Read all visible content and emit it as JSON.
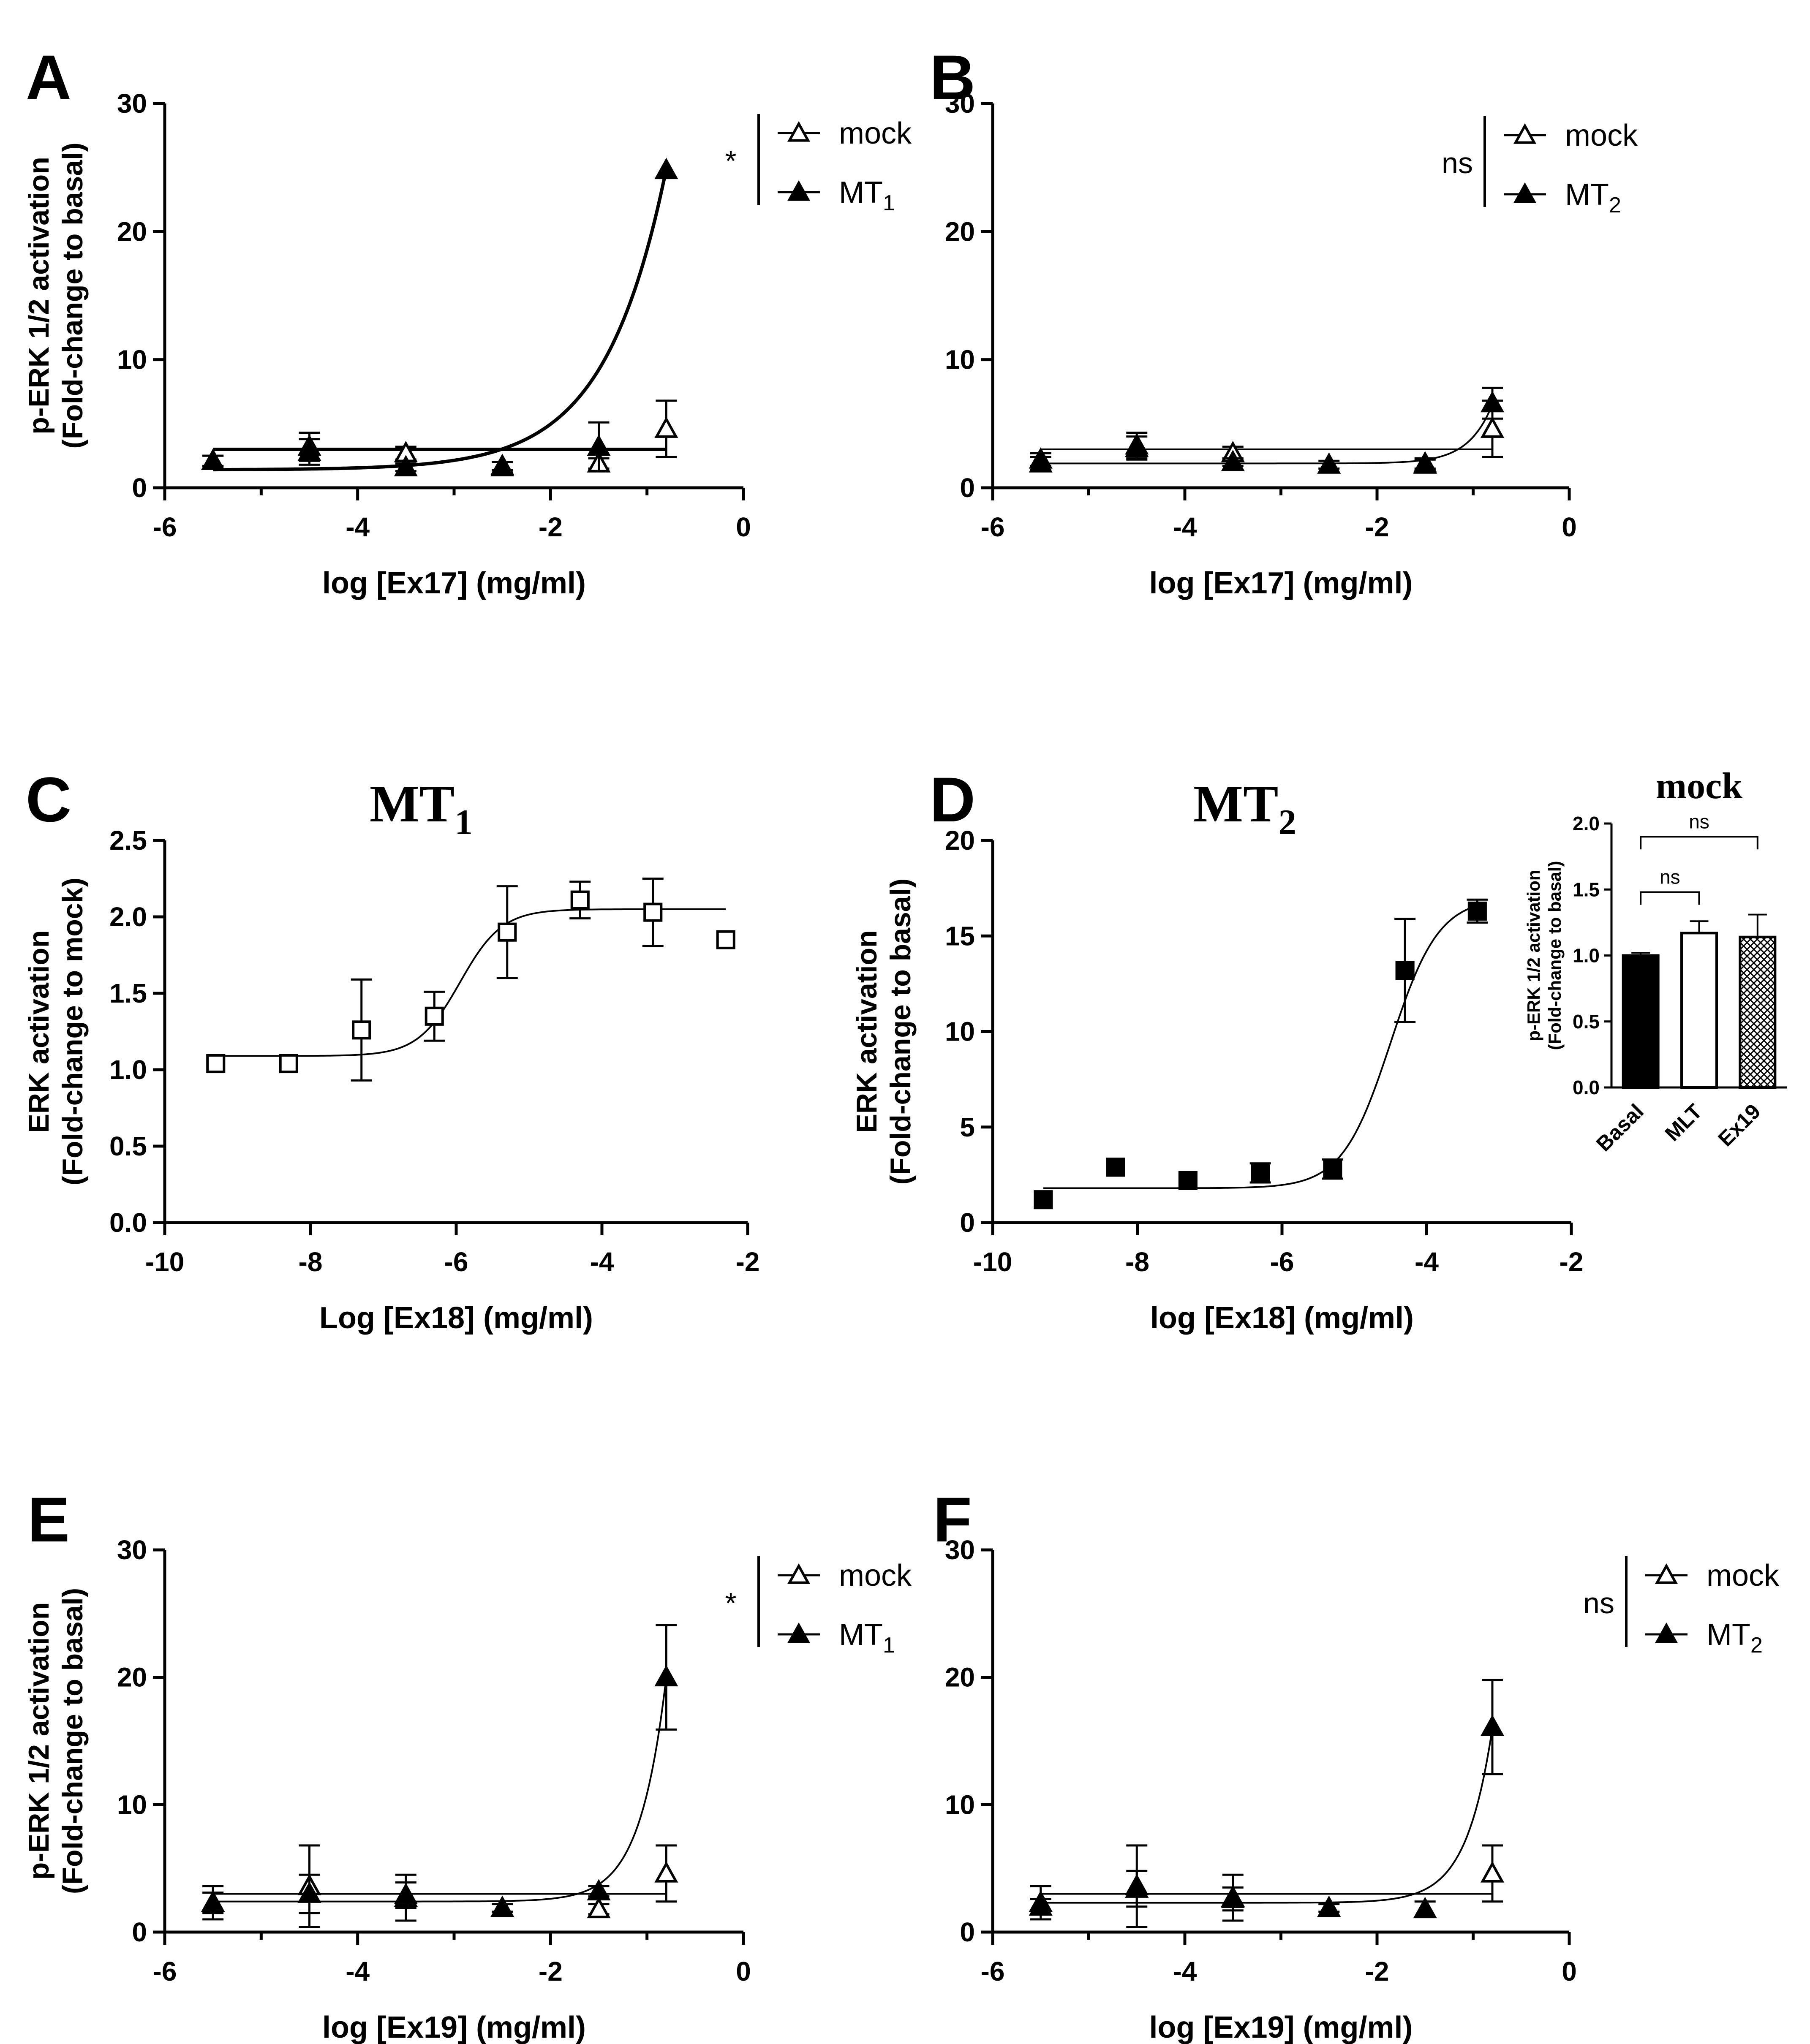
{
  "chart_data": [
    {
      "id": "panel-a",
      "panel_letter": "A",
      "type": "line",
      "title": "",
      "xlabel": "log [Ex17] (mg/ml)",
      "ylabel": "p-ERK 1/2 activation",
      "ylabel2": "(Fold-change to basal)",
      "xlim": [
        -6,
        0
      ],
      "ylim": [
        0,
        30
      ],
      "x_ticks": [
        -6,
        -4,
        -2,
        0
      ],
      "y_ticks": [
        0,
        10,
        20,
        30
      ],
      "x_tick_labels": [
        "-6",
        "-4",
        "-2",
        "0"
      ],
      "y_tick_labels": [
        "0",
        "10",
        "20",
        "30"
      ],
      "minor_x": true,
      "legend": {
        "position": "top-right",
        "bracket_label": "*",
        "items": [
          {
            "name": "mock",
            "sub": "",
            "marker": "open-triangle"
          },
          {
            "name": "MT",
            "sub": "1",
            "marker": "filled-triangle"
          }
        ]
      },
      "series": [
        {
          "name": "mock",
          "marker": "open-triangle",
          "fit": "flat",
          "fit_y": 3.0,
          "points": [
            {
              "x": -5.5,
              "y": 2.1,
              "err": 0.4
            },
            {
              "x": -4.5,
              "y": 3.2,
              "err": 1.1
            },
            {
              "x": -3.5,
              "y": 2.7,
              "err": 0.5
            },
            {
              "x": -2.5,
              "y": 1.7,
              "err": 0.3
            },
            {
              "x": -1.5,
              "y": 1.9,
              "err": 0.4
            },
            {
              "x": -0.8,
              "y": 4.6,
              "err": 2.2
            }
          ]
        },
        {
          "name": "MT1",
          "marker": "filled-triangle",
          "fit": "exp",
          "fit_params": [
            1.4,
            23.5,
            1.4
          ],
          "points": [
            {
              "x": -5.5,
              "y": 2.1,
              "err": 0.4
            },
            {
              "x": -4.5,
              "y": 2.8,
              "err": 1.0
            },
            {
              "x": -3.5,
              "y": 1.6,
              "err": 0.3
            },
            {
              "x": -2.5,
              "y": 1.6,
              "err": 0.4
            },
            {
              "x": -1.5,
              "y": 3.2,
              "err": 1.9
            },
            {
              "x": -0.8,
              "y": 24.8,
              "err": 0
            }
          ]
        }
      ]
    },
    {
      "id": "panel-b",
      "panel_letter": "B",
      "type": "line",
      "title": "",
      "xlabel": "log [Ex17] (mg/ml)",
      "ylabel": "",
      "ylabel2": "",
      "xlim": [
        -6,
        0
      ],
      "ylim": [
        0,
        30
      ],
      "x_ticks": [
        -6,
        -4,
        -2,
        0
      ],
      "y_ticks": [
        0,
        10,
        20,
        30
      ],
      "x_tick_labels": [
        "-6",
        "-4",
        "-2",
        "0"
      ],
      "y_tick_labels": [
        "0",
        "10",
        "20",
        "30"
      ],
      "minor_x": true,
      "legend": {
        "position": "top-right",
        "bracket_label": "ns",
        "items": [
          {
            "name": "mock",
            "sub": "",
            "marker": "open-triangle-line"
          },
          {
            "name": "MT",
            "sub": "2",
            "marker": "filled-triangle-line"
          }
        ]
      },
      "series": [
        {
          "name": "mock",
          "marker": "open-triangle",
          "fit": "flat",
          "fit_y": 3.0,
          "points": [
            {
              "x": -5.5,
              "y": 2.2,
              "err": 0.5
            },
            {
              "x": -4.5,
              "y": 3.3,
              "err": 1.0
            },
            {
              "x": -3.5,
              "y": 2.7,
              "err": 0.5
            },
            {
              "x": -1.5,
              "y": 1.8,
              "err": 0.4
            },
            {
              "x": -0.8,
              "y": 4.6,
              "err": 2.2
            }
          ]
        },
        {
          "name": "MT2",
          "marker": "filled-triangle",
          "fit": "exp",
          "fit_params": [
            1.9,
            4.6,
            0.55
          ],
          "points": [
            {
              "x": -5.5,
              "y": 1.9,
              "err": 0.5
            },
            {
              "x": -4.5,
              "y": 3.1,
              "err": 0.9
            },
            {
              "x": -3.5,
              "y": 2.0,
              "err": 0.3
            },
            {
              "x": -2.5,
              "y": 1.8,
              "err": 0.3
            },
            {
              "x": -1.5,
              "y": 1.9,
              "err": 0.4
            },
            {
              "x": -0.8,
              "y": 6.6,
              "err": 1.2
            }
          ]
        }
      ]
    },
    {
      "id": "panel-c",
      "panel_letter": "C",
      "type": "line",
      "title": "MT",
      "title_sub": "1",
      "xlabel": "Log [Ex18] (mg/ml)",
      "ylabel": "ERK activation",
      "ylabel2": "(Fold-change to mock)",
      "xlim": [
        -10,
        -2
      ],
      "ylim": [
        0,
        2.5
      ],
      "x_ticks": [
        -10,
        -8,
        -6,
        -4,
        -2
      ],
      "y_ticks": [
        0,
        0.5,
        1.0,
        1.5,
        2.0,
        2.5
      ],
      "x_tick_labels": [
        "-10",
        "-8",
        "-6",
        "-4",
        "-2"
      ],
      "y_tick_labels": [
        "0.0",
        "0.5",
        "1.0",
        "1.5",
        "2.0",
        "2.5"
      ],
      "minor_x": false,
      "series": [
        {
          "name": "MT1",
          "marker": "open-square",
          "fit": "sigmoid",
          "fit_params": [
            1.09,
            2.05,
            -5.95,
            1.5
          ],
          "points": [
            {
              "x": -9.3,
              "y": 1.04,
              "err": 0
            },
            {
              "x": -8.3,
              "y": 1.04,
              "err": 0
            },
            {
              "x": -7.3,
              "y": 1.26,
              "err": 0.33
            },
            {
              "x": -6.3,
              "y": 1.35,
              "err": 0.16
            },
            {
              "x": -5.3,
              "y": 1.9,
              "err": 0.3
            },
            {
              "x": -4.3,
              "y": 2.11,
              "err": 0.12
            },
            {
              "x": -3.3,
              "y": 2.03,
              "err": 0.22
            },
            {
              "x": -2.3,
              "y": 1.85,
              "err": 0
            }
          ]
        }
      ]
    },
    {
      "id": "panel-d",
      "panel_letter": "D",
      "type": "line",
      "title": "MT",
      "title_sub": "2",
      "xlabel": "log [Ex18] (mg/ml)",
      "ylabel": "ERK activation",
      "ylabel2": "(Fold-change to basal)",
      "xlim": [
        -10,
        -2
      ],
      "ylim": [
        0,
        20
      ],
      "x_ticks": [
        -10,
        -8,
        -6,
        -4,
        -2
      ],
      "y_ticks": [
        0,
        5,
        10,
        15,
        20
      ],
      "x_tick_labels": [
        "-10",
        "-8",
        "-6",
        "-4",
        "-2"
      ],
      "y_tick_labels": [
        "0",
        "5",
        "10",
        "15",
        "20"
      ],
      "minor_x": false,
      "series": [
        {
          "name": "MT2",
          "marker": "filled-square",
          "fit": "sigmoid",
          "fit_params": [
            1.8,
            17.0,
            -4.5,
            1.3
          ],
          "points": [
            {
              "x": -9.3,
              "y": 1.2,
              "err": 0
            },
            {
              "x": -8.3,
              "y": 2.9,
              "err": 0
            },
            {
              "x": -7.3,
              "y": 2.2,
              "err": 0
            },
            {
              "x": -6.3,
              "y": 2.6,
              "err": 0.5
            },
            {
              "x": -5.3,
              "y": 2.8,
              "err": 0.5
            },
            {
              "x": -4.3,
              "y": 13.2,
              "err": 2.7
            },
            {
              "x": -3.3,
              "y": 16.3,
              "err": 0.6
            }
          ]
        }
      ]
    },
    {
      "id": "panel-d-inset",
      "panel_letter": "",
      "type": "bar",
      "title": "mock",
      "ylabel": "p-ERK 1/2 activation",
      "ylabel2": "(Fold-change to basal)",
      "categories": [
        "Basal",
        "MLT",
        "Ex19"
      ],
      "values": [
        1.0,
        1.17,
        1.14
      ],
      "errors": [
        0.02,
        0.09,
        0.17
      ],
      "fills": [
        "black",
        "white",
        "hatch"
      ],
      "ylim": [
        0,
        2.0
      ],
      "y_ticks": [
        0,
        0.5,
        1.0,
        1.5,
        2.0
      ],
      "y_tick_labels": [
        "0.0",
        "0.5",
        "1.0",
        "1.5",
        "2.0"
      ],
      "comparisons": [
        {
          "from": 0,
          "to": 1,
          "label": "ns",
          "level": 1.48
        },
        {
          "from": 0,
          "to": 2,
          "label": "ns",
          "level": 1.9
        }
      ]
    },
    {
      "id": "panel-e",
      "panel_letter": "E",
      "type": "line",
      "title": "",
      "xlabel": "log [Ex19] (mg/ml)",
      "ylabel": "p-ERK 1/2 activation",
      "ylabel2": "(Fold-change to basal)",
      "xlim": [
        -6,
        0
      ],
      "ylim": [
        0,
        30
      ],
      "x_ticks": [
        -6,
        -4,
        -2,
        0
      ],
      "y_ticks": [
        0,
        10,
        20,
        30
      ],
      "x_tick_labels": [
        "-6",
        "-4",
        "-2",
        "0"
      ],
      "y_tick_labels": [
        "0",
        "10",
        "20",
        "30"
      ],
      "minor_x": true,
      "legend": {
        "position": "top-right",
        "bracket_label": "*",
        "items": [
          {
            "name": "mock",
            "sub": "",
            "marker": "open-triangle-line"
          },
          {
            "name": "MT",
            "sub": "1",
            "marker": "filled-triangle-line"
          }
        ]
      },
      "series": [
        {
          "name": "mock",
          "marker": "open-triangle",
          "fit": "flat",
          "fit_y": 3.0,
          "points": [
            {
              "x": -5.5,
              "y": 2.3,
              "err": 1.3
            },
            {
              "x": -4.5,
              "y": 3.6,
              "err": 3.2
            },
            {
              "x": -3.5,
              "y": 2.7,
              "err": 1.8
            },
            {
              "x": -1.5,
              "y": 1.8,
              "err": 0.4
            },
            {
              "x": -0.8,
              "y": 4.6,
              "err": 2.2
            }
          ]
        },
        {
          "name": "MT1",
          "marker": "filled-triangle",
          "fit": "exp",
          "fit_params": [
            2.4,
            17.6,
            0.6
          ],
          "points": [
            {
              "x": -5.5,
              "y": 2.3,
              "err": 0.8
            },
            {
              "x": -4.5,
              "y": 3.0,
              "err": 1.5
            },
            {
              "x": -3.5,
              "y": 2.9,
              "err": 1.0
            },
            {
              "x": -2.5,
              "y": 1.9,
              "err": 0.3
            },
            {
              "x": -1.5,
              "y": 3.2,
              "err": 0.4
            },
            {
              "x": -0.8,
              "y": 20.0,
              "err": 4.1
            }
          ]
        }
      ]
    },
    {
      "id": "panel-f",
      "panel_letter": "F",
      "type": "line",
      "title": "",
      "xlabel": "log [Ex19] (mg/ml)",
      "ylabel": "",
      "ylabel2": "",
      "xlim": [
        -6,
        0
      ],
      "ylim": [
        0,
        30
      ],
      "x_ticks": [
        -6,
        -4,
        -2,
        0
      ],
      "y_ticks": [
        0,
        10,
        20,
        30
      ],
      "x_tick_labels": [
        "-6",
        "-4",
        "-2",
        "0"
      ],
      "y_tick_labels": [
        "0",
        "10",
        "20",
        "30"
      ],
      "minor_x": true,
      "legend": {
        "position": "top-right",
        "bracket_label": "ns",
        "items": [
          {
            "name": "mock",
            "sub": "",
            "marker": "open-triangle-line"
          },
          {
            "name": "MT",
            "sub": "2",
            "marker": "filled-triangle-line"
          }
        ]
      },
      "series": [
        {
          "name": "mock",
          "marker": "open-triangle",
          "fit": "flat",
          "fit_y": 3.0,
          "points": [
            {
              "x": -5.5,
              "y": 2.3,
              "err": 1.3
            },
            {
              "x": -4.5,
              "y": 3.6,
              "err": 3.2
            },
            {
              "x": -3.5,
              "y": 2.7,
              "err": 1.8
            },
            {
              "x": -0.8,
              "y": 4.6,
              "err": 2.2
            }
          ]
        },
        {
          "name": "MT2",
          "marker": "filled-triangle",
          "fit": "exp",
          "fit_params": [
            2.3,
            13.7,
            0.6
          ],
          "points": [
            {
              "x": -5.5,
              "y": 2.0,
              "err": 0.6
            },
            {
              "x": -4.5,
              "y": 3.4,
              "err": 1.4
            },
            {
              "x": -3.5,
              "y": 2.6,
              "err": 0.9
            },
            {
              "x": -2.5,
              "y": 1.9,
              "err": 0.3
            },
            {
              "x": -1.5,
              "y": 1.8,
              "err": 0.6
            },
            {
              "x": -0.8,
              "y": 16.1,
              "err": 3.7
            }
          ]
        }
      ]
    }
  ]
}
